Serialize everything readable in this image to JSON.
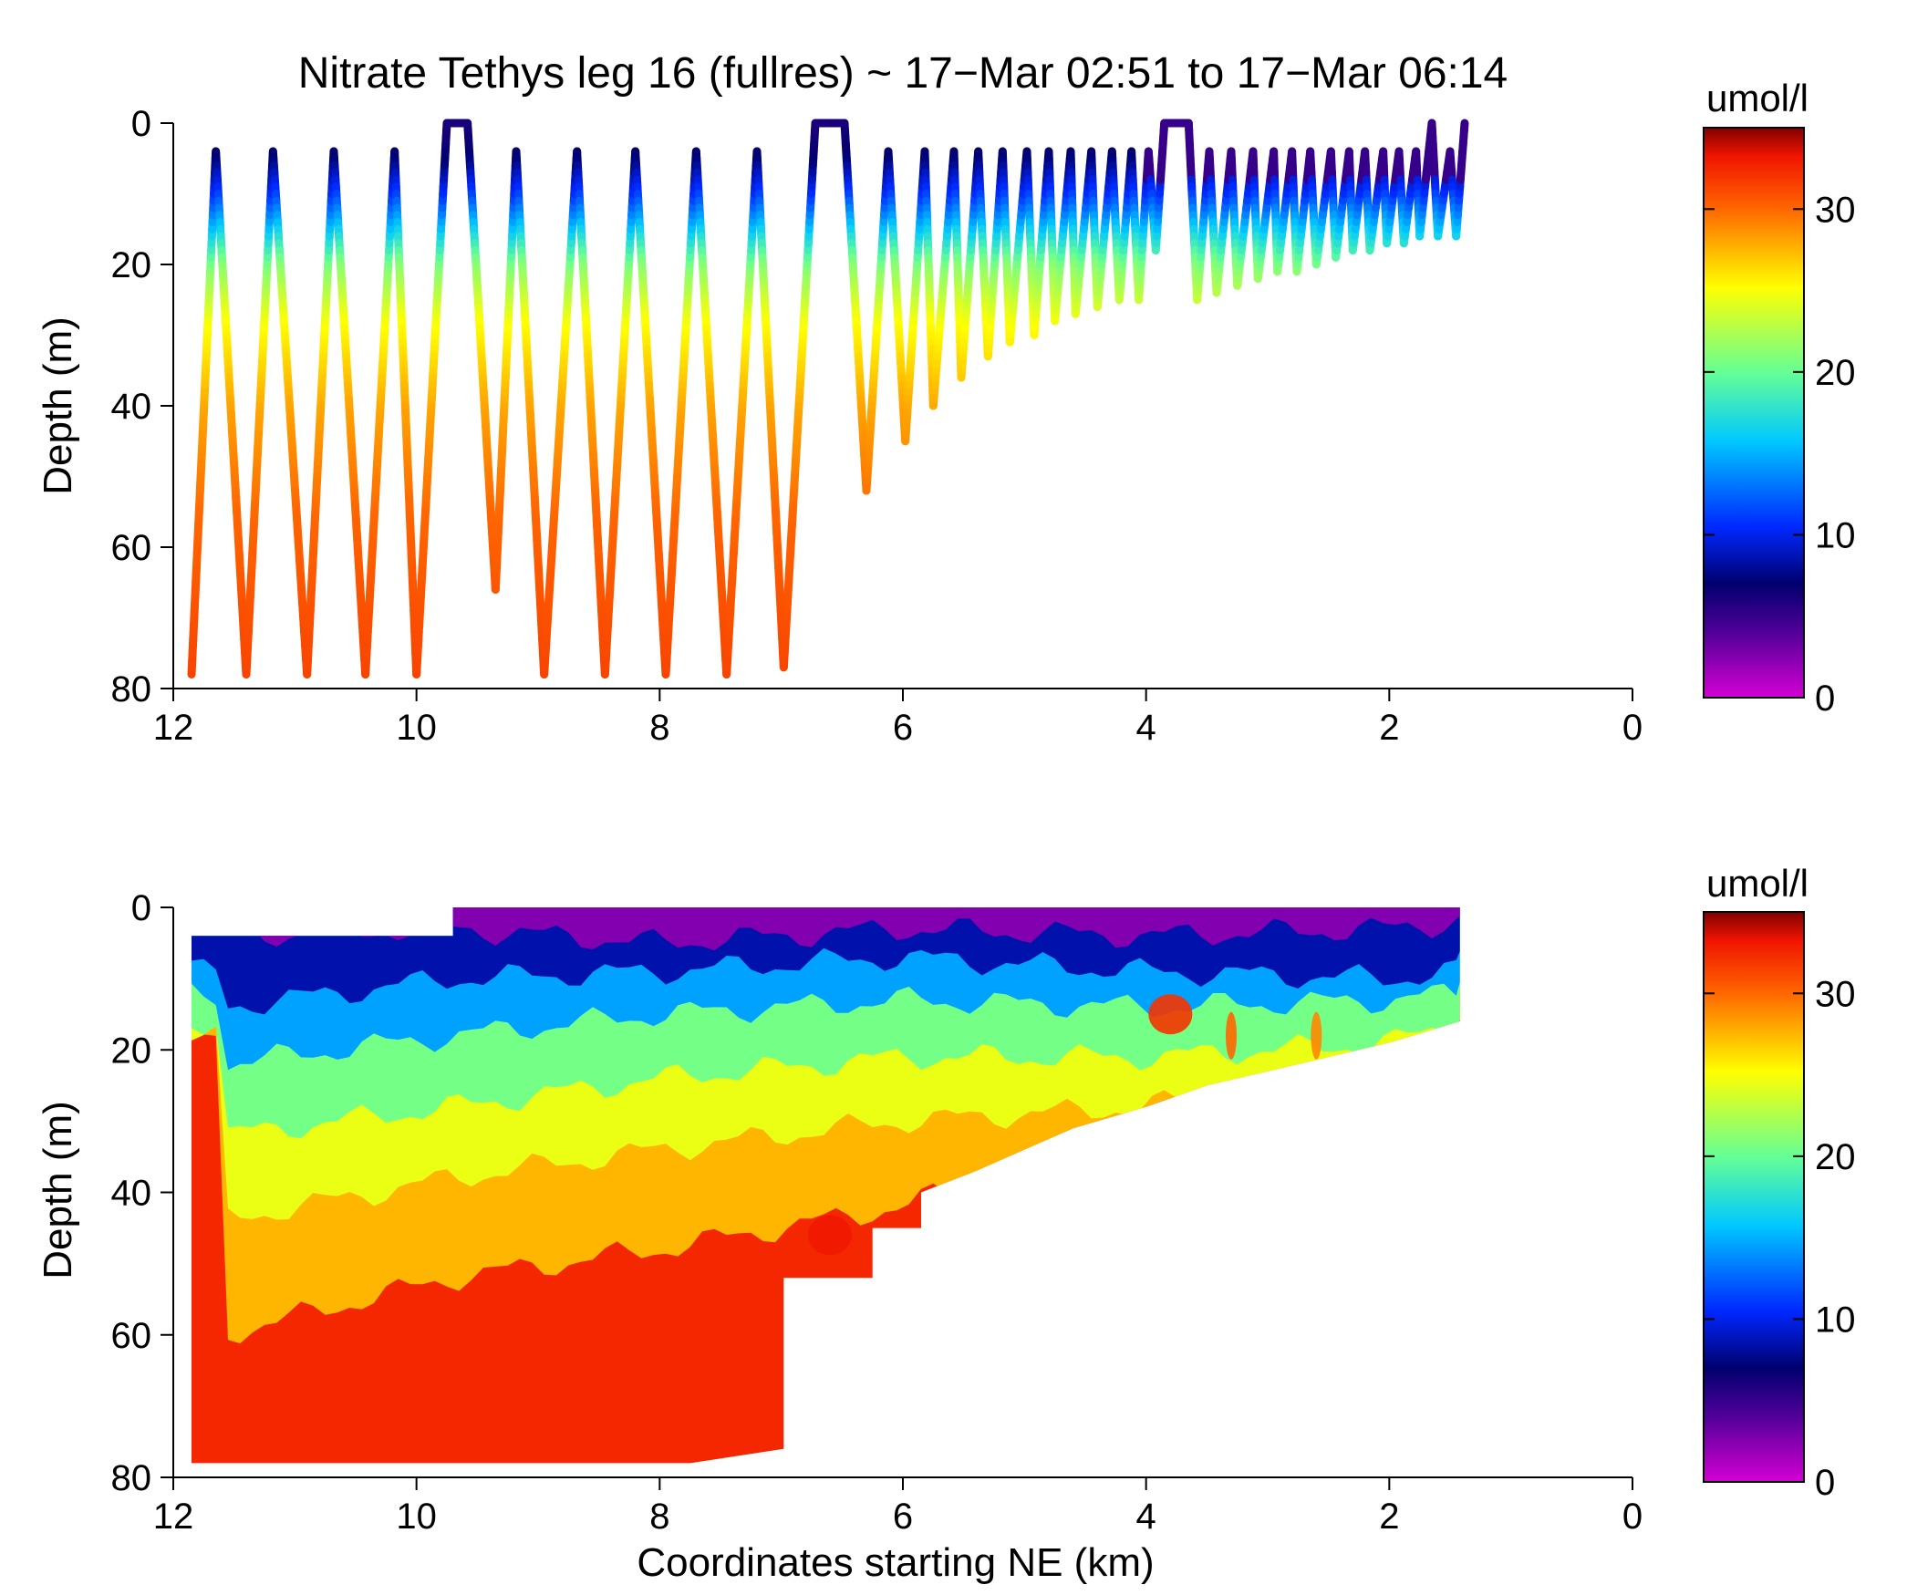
{
  "chart_data": [
    {
      "type": "scatter",
      "title": "Nitrate Tethys leg 16 (fullres) ~ 17−Mar 02:51 to 17−Mar 06:14",
      "xlabel": "",
      "ylabel": "Depth (m)",
      "xlim": [
        12,
        0
      ],
      "ylim": [
        80,
        0
      ],
      "xticks": [
        "12",
        "10",
        "8",
        "6",
        "4",
        "2",
        "0"
      ],
      "yticks": [
        "0",
        "20",
        "40",
        "60",
        "80"
      ],
      "colorbar": {
        "label": "umol/l",
        "range": [
          0,
          35
        ],
        "ticks": [
          "0",
          "10",
          "20",
          "30"
        ],
        "colormap": "jet"
      },
      "yo_profile": [
        [
          11.85,
          78
        ],
        [
          11.65,
          4
        ],
        [
          11.4,
          78
        ],
        [
          11.18,
          4
        ],
        [
          10.9,
          78
        ],
        [
          10.68,
          4
        ],
        [
          10.42,
          78
        ],
        [
          10.18,
          4
        ],
        [
          10.0,
          78
        ],
        [
          9.75,
          0
        ],
        [
          9.58,
          0
        ],
        [
          9.35,
          66
        ],
        [
          9.18,
          4
        ],
        [
          8.95,
          78
        ],
        [
          8.68,
          4
        ],
        [
          8.45,
          78
        ],
        [
          8.2,
          4
        ],
        [
          7.95,
          78
        ],
        [
          7.7,
          4
        ],
        [
          7.45,
          78
        ],
        [
          7.2,
          4
        ],
        [
          6.98,
          77
        ],
        [
          6.72,
          0
        ],
        [
          6.48,
          0
        ],
        [
          6.3,
          52
        ],
        [
          6.12,
          4
        ],
        [
          5.98,
          45
        ],
        [
          5.82,
          4
        ],
        [
          5.75,
          40
        ],
        [
          5.58,
          4
        ],
        [
          5.52,
          36
        ],
        [
          5.38,
          4
        ],
        [
          5.3,
          33
        ],
        [
          5.18,
          4
        ],
        [
          5.12,
          31
        ],
        [
          4.98,
          4
        ],
        [
          4.92,
          30
        ],
        [
          4.8,
          4
        ],
        [
          4.75,
          28
        ],
        [
          4.62,
          4
        ],
        [
          4.58,
          27
        ],
        [
          4.45,
          4
        ],
        [
          4.4,
          26
        ],
        [
          4.28,
          4
        ],
        [
          4.22,
          25
        ],
        [
          4.12,
          4
        ],
        [
          4.06,
          25
        ],
        [
          3.98,
          4
        ],
        [
          3.92,
          18
        ],
        [
          3.85,
          0
        ],
        [
          3.65,
          0
        ],
        [
          3.58,
          25
        ],
        [
          3.48,
          4
        ],
        [
          3.42,
          24
        ],
        [
          3.3,
          4
        ],
        [
          3.25,
          23
        ],
        [
          3.12,
          4
        ],
        [
          3.08,
          22
        ],
        [
          2.95,
          4
        ],
        [
          2.92,
          21
        ],
        [
          2.8,
          4
        ],
        [
          2.76,
          21
        ],
        [
          2.65,
          4
        ],
        [
          2.6,
          20
        ],
        [
          2.48,
          4
        ],
        [
          2.44,
          19
        ],
        [
          2.33,
          4
        ],
        [
          2.3,
          18
        ],
        [
          2.2,
          4
        ],
        [
          2.16,
          18
        ],
        [
          2.05,
          4
        ],
        [
          2.02,
          17
        ],
        [
          1.92,
          4
        ],
        [
          1.88,
          17
        ],
        [
          1.78,
          4
        ],
        [
          1.75,
          16
        ],
        [
          1.65,
          0
        ],
        [
          1.6,
          16
        ],
        [
          1.5,
          4
        ],
        [
          1.45,
          16
        ],
        [
          1.38,
          0
        ]
      ]
    },
    {
      "type": "heatmap",
      "title": "",
      "xlabel": "Coordinates starting NE (km)",
      "ylabel": "Depth (m)",
      "xlim": [
        12,
        0
      ],
      "ylim": [
        80,
        0
      ],
      "xticks": [
        "12",
        "10",
        "8",
        "6",
        "4",
        "2",
        "0"
      ],
      "yticks": [
        "0",
        "20",
        "40",
        "60",
        "80"
      ],
      "colorbar": {
        "label": "umol/l",
        "range": [
          0,
          35
        ],
        "ticks": [
          "0",
          "10",
          "20",
          "30"
        ],
        "colormap": "jet"
      },
      "bottom_boundary": [
        [
          11.85,
          78
        ],
        [
          10.0,
          78
        ],
        [
          9.0,
          78
        ],
        [
          7.75,
          78
        ],
        [
          6.98,
          76
        ],
        [
          6.98,
          52
        ],
        [
          6.25,
          52
        ],
        [
          6.25,
          45
        ],
        [
          5.85,
          45
        ],
        [
          5.85,
          40
        ],
        [
          5.4,
          37
        ],
        [
          5.0,
          34
        ],
        [
          4.6,
          31
        ],
        [
          4.0,
          28
        ],
        [
          3.5,
          25
        ],
        [
          3.0,
          23
        ],
        [
          2.5,
          21
        ],
        [
          2.0,
          19
        ],
        [
          1.42,
          16
        ]
      ],
      "isoline_depths": [
        {
          "value": 6,
          "depths": [
            [
              11.6,
              4
            ],
            [
              9.7,
              3
            ],
            [
              8.0,
              5
            ],
            [
              6.0,
              3
            ],
            [
              4.0,
              4
            ],
            [
              2.0,
              3
            ],
            [
              1.42,
              2
            ]
          ]
        },
        {
          "value": 12,
          "depths": [
            [
              11.6,
              14
            ],
            [
              9.7,
              10
            ],
            [
              8.0,
              9
            ],
            [
              6.0,
              7
            ],
            [
              4.0,
              9
            ],
            [
              2.0,
              10
            ],
            [
              1.42,
              9
            ]
          ]
        },
        {
          "value": 18,
          "depths": [
            [
              11.6,
              22
            ],
            [
              9.7,
              18
            ],
            [
              8.0,
              15
            ],
            [
              6.0,
              13
            ],
            [
              4.0,
              14
            ],
            [
              2.0,
              13
            ],
            [
              1.42,
              12
            ]
          ]
        },
        {
          "value": 24,
          "depths": [
            [
              11.6,
              32
            ],
            [
              9.7,
              28
            ],
            [
              8.0,
              24
            ],
            [
              6.0,
              21
            ],
            [
              4.0,
              21
            ],
            [
              2.0,
              19
            ],
            [
              1.42,
              16
            ]
          ]
        },
        {
          "value": 28,
          "depths": [
            [
              11.6,
              44
            ],
            [
              9.7,
              38
            ],
            [
              8.0,
              34
            ],
            [
              6.0,
              30
            ],
            [
              4.0,
              28
            ],
            [
              2.0,
              21
            ],
            [
              1.42,
              18
            ]
          ]
        },
        {
          "value": 31,
          "depths": [
            [
              11.6,
              60
            ],
            [
              9.7,
              52
            ],
            [
              8.0,
              48
            ],
            [
              6.0,
              42
            ],
            [
              4.0,
              30
            ],
            [
              2.0,
              23
            ],
            [
              1.42,
              19
            ]
          ]
        }
      ],
      "features": [
        {
          "x": 3.8,
          "depth": 15,
          "value": 32
        },
        {
          "x": 3.3,
          "depth": 18,
          "value": 30
        },
        {
          "x": 2.6,
          "depth": 18,
          "value": 29
        },
        {
          "x": 6.6,
          "depth": 46,
          "value": 33
        }
      ]
    }
  ]
}
